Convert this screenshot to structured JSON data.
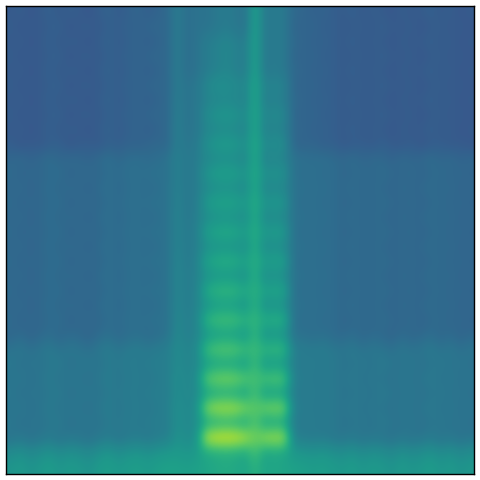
{
  "chart_data": {
    "type": "heatmap",
    "tick_labels": false,
    "color": "viridis",
    "zlim": [
      0,
      100
    ],
    "cells": [
      [
        28,
        30,
        27,
        29,
        31,
        28,
        30,
        29,
        27,
        30,
        32,
        29,
        31,
        33,
        30,
        32,
        34,
        42,
        36,
        38,
        38,
        40,
        42,
        40,
        38,
        58,
        40,
        42,
        40,
        34,
        33,
        31,
        32,
        30,
        29,
        31,
        28,
        30,
        29,
        27,
        30,
        28,
        29,
        31,
        28,
        30,
        27,
        29
      ],
      [
        30,
        27,
        29,
        28,
        30,
        31,
        27,
        29,
        30,
        28,
        31,
        30,
        32,
        31,
        33,
        34,
        33,
        42,
        36,
        38,
        38,
        40,
        42,
        40,
        38,
        58,
        40,
        42,
        40,
        33,
        32,
        33,
        30,
        31,
        28,
        29,
        30,
        28,
        31,
        29,
        28,
        30,
        27,
        29,
        30,
        28,
        29,
        27
      ],
      [
        28,
        30,
        27,
        29,
        31,
        28,
        30,
        29,
        27,
        30,
        32,
        29,
        31,
        33,
        30,
        32,
        34,
        42,
        36,
        38,
        42,
        44,
        46,
        44,
        42,
        58,
        40,
        42,
        40,
        34,
        33,
        31,
        32,
        30,
        29,
        31,
        28,
        30,
        29,
        27,
        30,
        28,
        29,
        31,
        28,
        30,
        27,
        29
      ],
      [
        30,
        27,
        29,
        28,
        30,
        31,
        27,
        29,
        30,
        28,
        31,
        30,
        32,
        31,
        33,
        34,
        33,
        42,
        36,
        38,
        42,
        44,
        46,
        44,
        42,
        58,
        40,
        42,
        40,
        33,
        32,
        33,
        30,
        31,
        28,
        29,
        30,
        28,
        31,
        29,
        28,
        30,
        27,
        29,
        30,
        28,
        29,
        27
      ],
      [
        28,
        30,
        27,
        29,
        31,
        28,
        30,
        29,
        27,
        30,
        32,
        29,
        31,
        33,
        30,
        32,
        34,
        42,
        36,
        38,
        42,
        44,
        46,
        44,
        42,
        58,
        40,
        42,
        40,
        34,
        33,
        31,
        32,
        30,
        29,
        31,
        28,
        30,
        29,
        27,
        30,
        28,
        29,
        31,
        28,
        30,
        27,
        29
      ],
      [
        30,
        27,
        29,
        28,
        30,
        31,
        27,
        29,
        30,
        28,
        31,
        30,
        32,
        31,
        33,
        34,
        33,
        42,
        38,
        40,
        46,
        50,
        50,
        48,
        46,
        60,
        44,
        46,
        44,
        33,
        32,
        33,
        30,
        31,
        28,
        29,
        30,
        28,
        31,
        29,
        28,
        30,
        27,
        29,
        30,
        28,
        29,
        27
      ],
      [
        28,
        30,
        27,
        29,
        31,
        28,
        30,
        29,
        27,
        30,
        32,
        29,
        31,
        33,
        30,
        32,
        34,
        42,
        38,
        40,
        44,
        46,
        47,
        46,
        44,
        60,
        42,
        44,
        42,
        34,
        33,
        31,
        32,
        30,
        29,
        31,
        28,
        30,
        29,
        27,
        30,
        28,
        29,
        31,
        28,
        30,
        27,
        29
      ],
      [
        30,
        27,
        29,
        28,
        30,
        31,
        27,
        29,
        30,
        28,
        31,
        30,
        32,
        31,
        33,
        34,
        33,
        43,
        38,
        40,
        48,
        52,
        53,
        52,
        48,
        60,
        46,
        48,
        46,
        33,
        32,
        33,
        30,
        31,
        28,
        29,
        30,
        28,
        31,
        29,
        28,
        30,
        27,
        29,
        30,
        28,
        29,
        27
      ],
      [
        28,
        30,
        27,
        29,
        31,
        28,
        30,
        29,
        27,
        30,
        32,
        29,
        31,
        33,
        30,
        32,
        34,
        43,
        38,
        40,
        45,
        47,
        48,
        47,
        45,
        60,
        43,
        45,
        43,
        34,
        33,
        31,
        32,
        30,
        29,
        31,
        28,
        30,
        29,
        27,
        30,
        28,
        29,
        31,
        28,
        30,
        27,
        29
      ],
      [
        30,
        27,
        29,
        28,
        30,
        31,
        27,
        29,
        30,
        28,
        31,
        30,
        32,
        31,
        33,
        34,
        33,
        43,
        39,
        41,
        50,
        54,
        55,
        54,
        50,
        61,
        48,
        50,
        48,
        33,
        32,
        33,
        30,
        31,
        28,
        29,
        30,
        28,
        31,
        29,
        28,
        30,
        27,
        29,
        30,
        28,
        29,
        27
      ],
      [
        33,
        35,
        32,
        34,
        36,
        33,
        35,
        34,
        32,
        35,
        37,
        34,
        36,
        37,
        35,
        36,
        38,
        44,
        40,
        42,
        46,
        48,
        49,
        48,
        46,
        61,
        44,
        46,
        44,
        38,
        37,
        36,
        37,
        35,
        34,
        36,
        33,
        35,
        34,
        32,
        35,
        33,
        34,
        36,
        33,
        35,
        32,
        34
      ],
      [
        35,
        32,
        34,
        33,
        35,
        36,
        32,
        34,
        35,
        33,
        36,
        35,
        37,
        36,
        37,
        38,
        37,
        44,
        40,
        42,
        52,
        56,
        57,
        56,
        52,
        61,
        50,
        52,
        50,
        37,
        36,
        37,
        35,
        36,
        33,
        34,
        35,
        33,
        36,
        34,
        33,
        35,
        32,
        34,
        35,
        33,
        34,
        32
      ],
      [
        33,
        35,
        32,
        34,
        36,
        33,
        35,
        34,
        32,
        35,
        37,
        34,
        36,
        37,
        35,
        36,
        38,
        44,
        40,
        42,
        47,
        49,
        50,
        49,
        47,
        61,
        45,
        47,
        45,
        38,
        37,
        36,
        37,
        35,
        34,
        36,
        33,
        35,
        34,
        32,
        35,
        33,
        34,
        36,
        33,
        35,
        32,
        34
      ],
      [
        35,
        32,
        34,
        33,
        35,
        36,
        32,
        34,
        35,
        33,
        36,
        35,
        37,
        36,
        37,
        38,
        37,
        45,
        40,
        42,
        54,
        58,
        59,
        58,
        54,
        62,
        52,
        54,
        52,
        37,
        36,
        37,
        35,
        36,
        33,
        34,
        35,
        33,
        36,
        34,
        33,
        35,
        32,
        34,
        35,
        33,
        34,
        32
      ],
      [
        33,
        35,
        32,
        34,
        36,
        33,
        35,
        34,
        32,
        35,
        37,
        34,
        36,
        37,
        35,
        36,
        38,
        45,
        40,
        43,
        48,
        50,
        51,
        50,
        48,
        62,
        46,
        48,
        46,
        38,
        37,
        36,
        37,
        35,
        34,
        36,
        33,
        35,
        34,
        32,
        35,
        33,
        34,
        36,
        33,
        35,
        32,
        34
      ],
      [
        35,
        32,
        34,
        33,
        35,
        36,
        32,
        34,
        35,
        33,
        36,
        35,
        37,
        36,
        37,
        38,
        37,
        45,
        41,
        43,
        56,
        60,
        61,
        60,
        56,
        62,
        54,
        56,
        54,
        37,
        36,
        37,
        35,
        36,
        33,
        34,
        35,
        33,
        36,
        34,
        33,
        35,
        32,
        34,
        35,
        33,
        34,
        32
      ],
      [
        33,
        35,
        32,
        34,
        36,
        33,
        35,
        34,
        32,
        35,
        37,
        34,
        36,
        37,
        35,
        36,
        38,
        45,
        41,
        43,
        49,
        51,
        52,
        51,
        49,
        62,
        47,
        49,
        47,
        38,
        37,
        36,
        37,
        35,
        34,
        36,
        33,
        35,
        34,
        32,
        35,
        33,
        34,
        36,
        33,
        35,
        32,
        34
      ],
      [
        35,
        32,
        34,
        33,
        35,
        36,
        32,
        34,
        35,
        33,
        36,
        35,
        37,
        36,
        37,
        38,
        37,
        46,
        41,
        44,
        58,
        62,
        63,
        62,
        58,
        63,
        56,
        58,
        56,
        37,
        36,
        37,
        35,
        36,
        33,
        34,
        35,
        33,
        36,
        34,
        33,
        35,
        32,
        34,
        35,
        33,
        34,
        32
      ],
      [
        33,
        35,
        32,
        34,
        36,
        33,
        35,
        34,
        32,
        35,
        37,
        34,
        36,
        37,
        35,
        36,
        38,
        46,
        42,
        44,
        50,
        52,
        53,
        52,
        50,
        63,
        48,
        50,
        48,
        38,
        37,
        36,
        37,
        35,
        34,
        36,
        33,
        35,
        34,
        32,
        35,
        33,
        34,
        36,
        33,
        35,
        32,
        34
      ],
      [
        35,
        32,
        34,
        33,
        35,
        36,
        32,
        34,
        35,
        33,
        36,
        35,
        37,
        36,
        37,
        38,
        37,
        46,
        42,
        44,
        61,
        66,
        67,
        66,
        61,
        64,
        58,
        60,
        58,
        37,
        36,
        37,
        35,
        36,
        33,
        34,
        35,
        33,
        36,
        34,
        33,
        35,
        32,
        34,
        35,
        33,
        34,
        32
      ],
      [
        33,
        35,
        32,
        34,
        36,
        33,
        35,
        34,
        32,
        35,
        37,
        34,
        36,
        37,
        35,
        36,
        38,
        46,
        42,
        45,
        51,
        54,
        55,
        54,
        51,
        64,
        49,
        51,
        49,
        38,
        37,
        36,
        37,
        35,
        34,
        36,
        33,
        35,
        34,
        32,
        35,
        33,
        34,
        36,
        33,
        35,
        32,
        34
      ],
      [
        35,
        32,
        34,
        33,
        35,
        36,
        32,
        34,
        35,
        33,
        36,
        35,
        37,
        36,
        37,
        38,
        37,
        47,
        43,
        45,
        65,
        70,
        71,
        70,
        65,
        66,
        62,
        64,
        62,
        37,
        36,
        37,
        35,
        36,
        33,
        34,
        35,
        33,
        36,
        34,
        33,
        35,
        32,
        34,
        35,
        33,
        34,
        32
      ],
      [
        33,
        35,
        32,
        34,
        36,
        33,
        35,
        34,
        32,
        35,
        37,
        34,
        36,
        37,
        35,
        36,
        38,
        47,
        43,
        45,
        52,
        55,
        56,
        55,
        52,
        66,
        50,
        52,
        50,
        38,
        37,
        36,
        37,
        35,
        34,
        36,
        33,
        35,
        34,
        32,
        35,
        33,
        34,
        36,
        33,
        35,
        32,
        34
      ],
      [
        38,
        40,
        37,
        39,
        41,
        38,
        40,
        39,
        37,
        40,
        42,
        39,
        41,
        42,
        40,
        42,
        43,
        48,
        45,
        47,
        69,
        74,
        75,
        74,
        69,
        68,
        66,
        68,
        66,
        43,
        42,
        41,
        42,
        40,
        39,
        41,
        38,
        40,
        39,
        37,
        40,
        38,
        39,
        41,
        38,
        40,
        37,
        39
      ],
      [
        40,
        37,
        39,
        38,
        40,
        41,
        37,
        39,
        40,
        38,
        41,
        40,
        42,
        41,
        42,
        43,
        42,
        48,
        45,
        47,
        54,
        57,
        58,
        57,
        54,
        68,
        52,
        54,
        52,
        42,
        41,
        42,
        40,
        41,
        38,
        39,
        40,
        38,
        41,
        39,
        38,
        40,
        37,
        39,
        40,
        38,
        39,
        37
      ],
      [
        38,
        40,
        37,
        39,
        41,
        38,
        40,
        39,
        37,
        40,
        42,
        39,
        41,
        42,
        40,
        42,
        43,
        49,
        46,
        48,
        75,
        80,
        81,
        80,
        75,
        70,
        72,
        74,
        72,
        43,
        42,
        41,
        42,
        40,
        39,
        41,
        38,
        40,
        39,
        37,
        40,
        38,
        39,
        41,
        38,
        40,
        37,
        39
      ],
      [
        40,
        37,
        39,
        38,
        40,
        41,
        37,
        39,
        40,
        38,
        41,
        40,
        42,
        41,
        42,
        43,
        42,
        49,
        46,
        48,
        56,
        59,
        60,
        59,
        56,
        70,
        54,
        56,
        54,
        42,
        41,
        42,
        40,
        41,
        38,
        39,
        40,
        38,
        41,
        39,
        38,
        40,
        37,
        39,
        40,
        38,
        39,
        37
      ],
      [
        38,
        40,
        37,
        39,
        41,
        38,
        40,
        39,
        37,
        40,
        42,
        39,
        41,
        42,
        40,
        42,
        43,
        50,
        47,
        49,
        82,
        88,
        89,
        88,
        82,
        74,
        80,
        82,
        80,
        43,
        42,
        41,
        42,
        40,
        39,
        41,
        38,
        40,
        39,
        37,
        40,
        38,
        39,
        41,
        38,
        40,
        37,
        39
      ],
      [
        40,
        37,
        39,
        38,
        40,
        41,
        37,
        39,
        40,
        38,
        41,
        40,
        42,
        41,
        42,
        43,
        42,
        50,
        47,
        49,
        58,
        61,
        62,
        61,
        58,
        72,
        56,
        58,
        56,
        42,
        41,
        42,
        40,
        41,
        38,
        39,
        40,
        38,
        41,
        39,
        38,
        40,
        37,
        39,
        40,
        38,
        39,
        37
      ],
      [
        38,
        40,
        37,
        39,
        41,
        38,
        40,
        39,
        37,
        40,
        42,
        39,
        41,
        42,
        40,
        42,
        43,
        51,
        48,
        50,
        90,
        95,
        96,
        95,
        90,
        78,
        86,
        88,
        86,
        43,
        42,
        41,
        42,
        40,
        39,
        41,
        38,
        40,
        39,
        37,
        40,
        38,
        39,
        41,
        38,
        40,
        37,
        39
      ],
      [
        48,
        50,
        47,
        49,
        51,
        48,
        50,
        49,
        47,
        50,
        52,
        49,
        51,
        52,
        50,
        52,
        53,
        54,
        52,
        54,
        60,
        62,
        63,
        62,
        60,
        70,
        58,
        60,
        58,
        53,
        52,
        51,
        52,
        50,
        49,
        51,
        48,
        50,
        49,
        47,
        50,
        48,
        49,
        51,
        48,
        50,
        47,
        49
      ],
      [
        52,
        54,
        51,
        53,
        55,
        52,
        54,
        53,
        51,
        54,
        56,
        53,
        55,
        56,
        54,
        56,
        57,
        57,
        56,
        57,
        58,
        60,
        61,
        60,
        58,
        64,
        58,
        59,
        58,
        57,
        56,
        55,
        56,
        54,
        53,
        55,
        52,
        54,
        53,
        51,
        54,
        52,
        53,
        55,
        52,
        54,
        51,
        53
      ]
    ]
  }
}
